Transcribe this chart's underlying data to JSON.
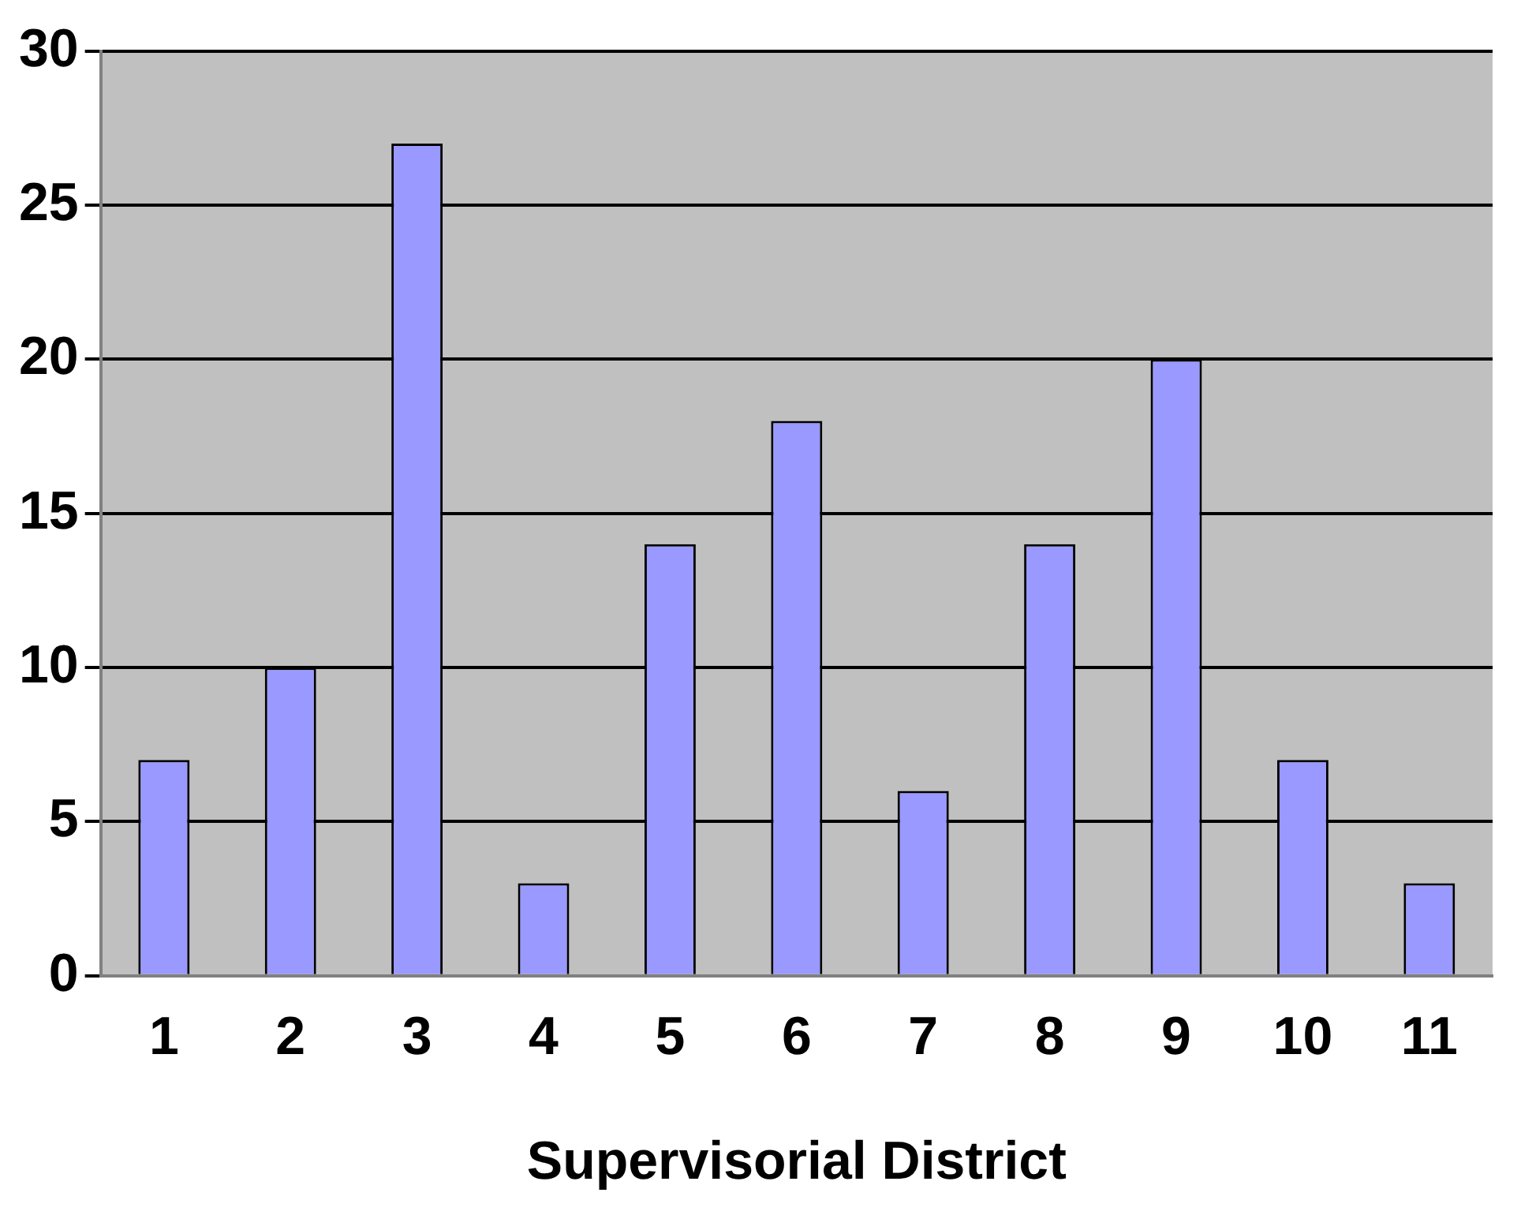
{
  "chart_data": {
    "type": "bar",
    "xlabel": "Supervisorial District",
    "categories": [
      "1",
      "2",
      "3",
      "4",
      "5",
      "6",
      "7",
      "8",
      "9",
      "10",
      "11"
    ],
    "values": [
      7,
      10,
      27,
      3,
      14,
      18,
      6,
      14,
      20,
      7,
      3
    ],
    "color": "#9999ff",
    "ylim": [
      0,
      30
    ],
    "yticks": [
      0,
      5,
      10,
      15,
      20,
      25,
      30
    ],
    "grid": "y",
    "legend": false
  }
}
